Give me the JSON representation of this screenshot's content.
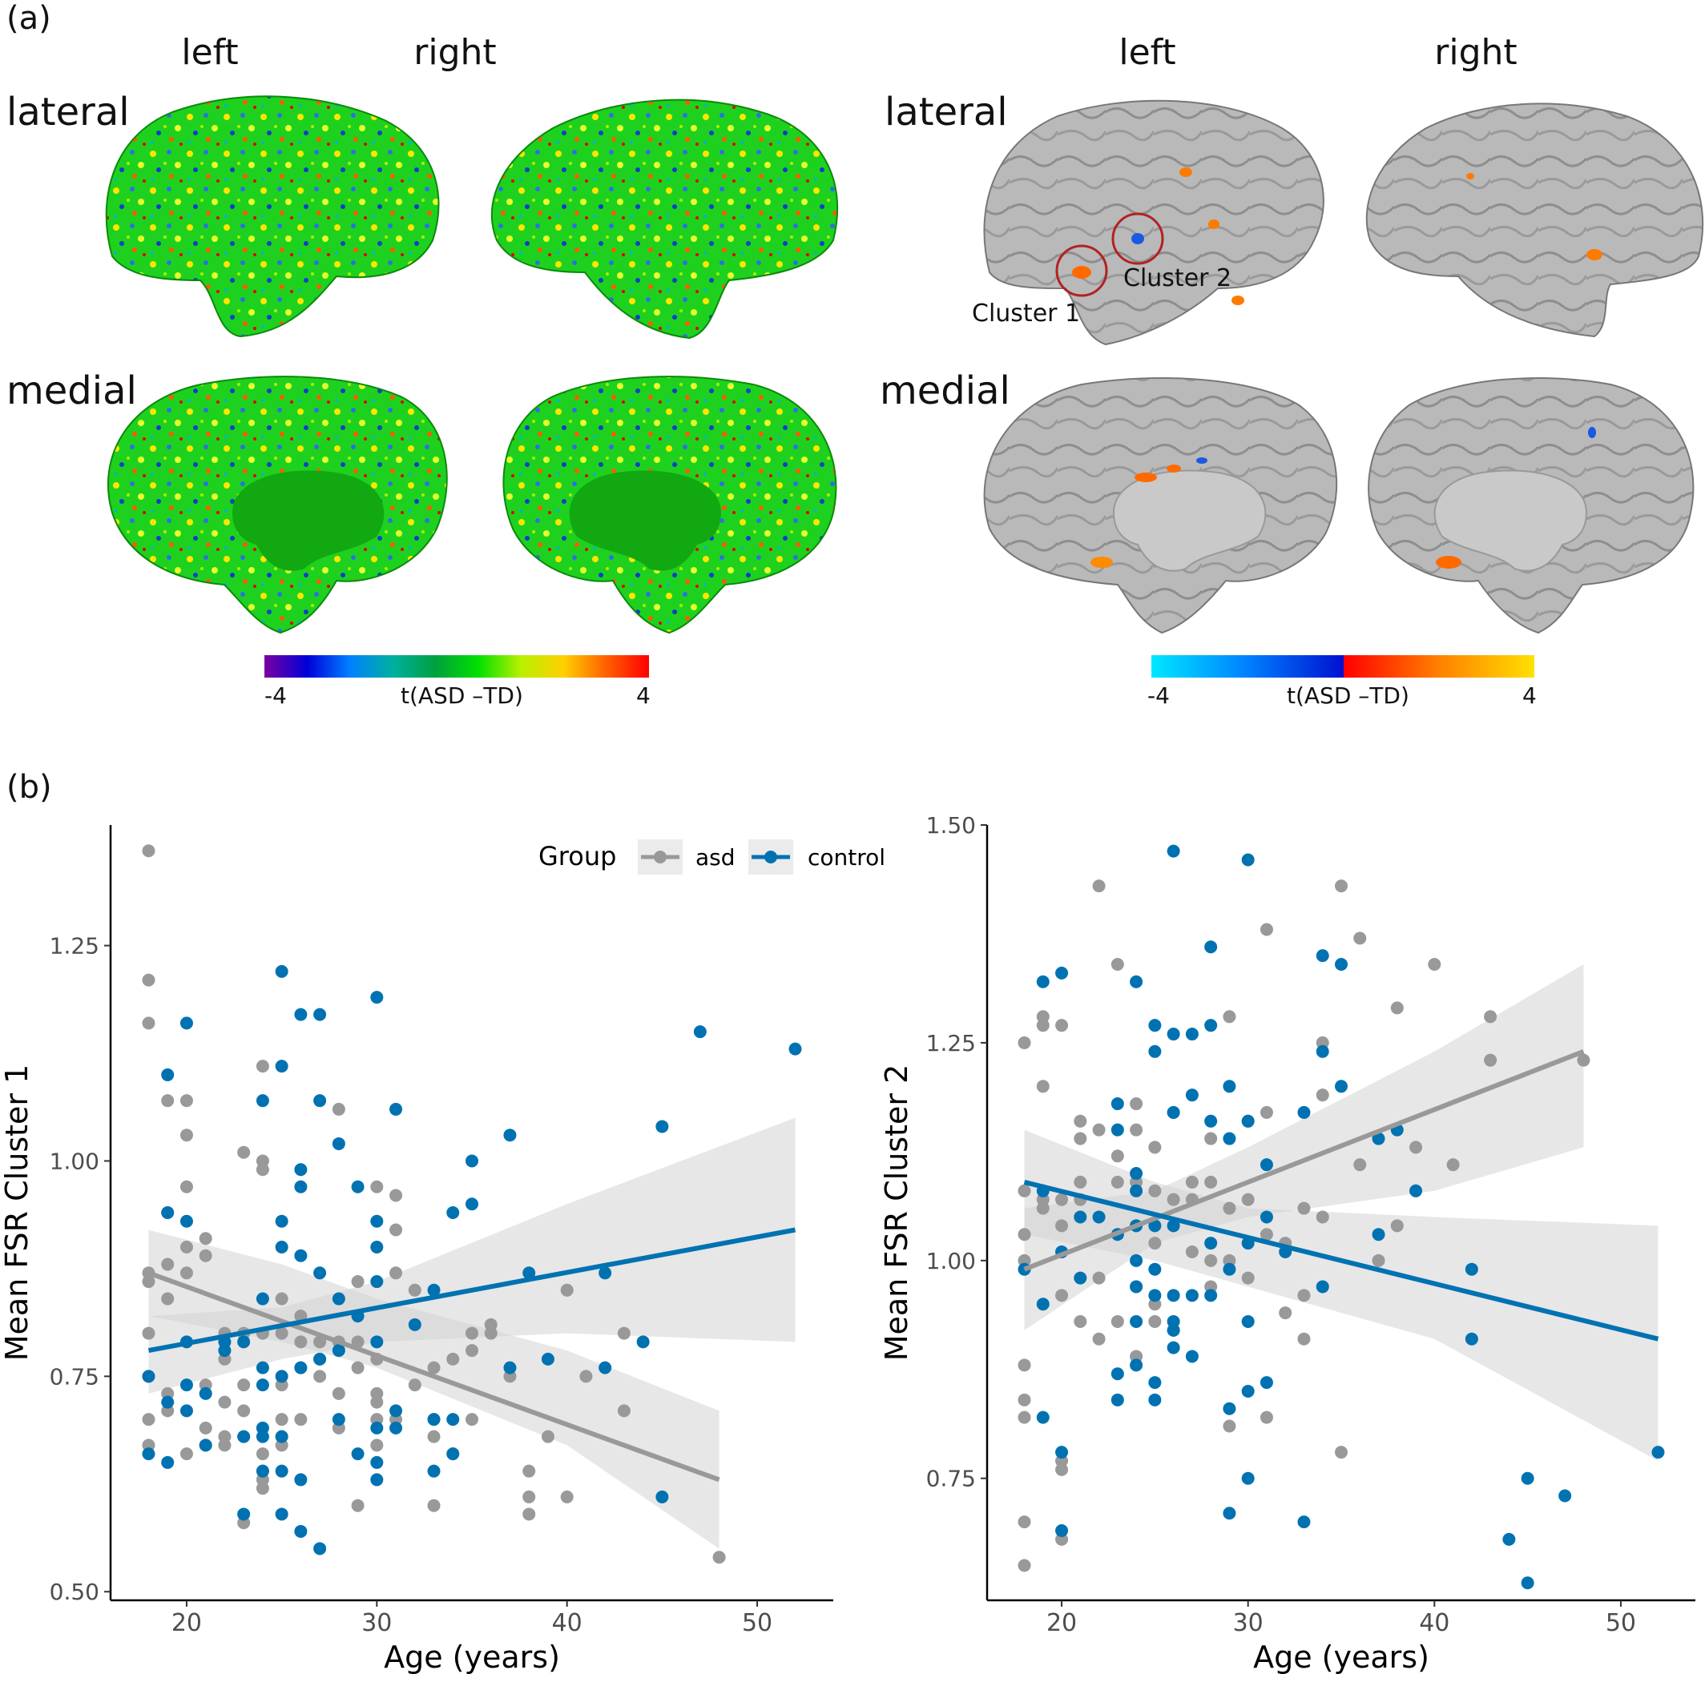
{
  "panel_a": {
    "label": "(a)",
    "left_block": {
      "hemi_left": "left",
      "hemi_right": "right",
      "row_lateral": "lateral",
      "row_medial": "medial",
      "colorbar": {
        "min": "-4",
        "title": "t(ASD  –TD)",
        "max": "4",
        "colors": [
          "#7a00a0",
          "#0000d8",
          "#0080ff",
          "#00b0a0",
          "#00a040",
          "#00e000",
          "#b8f000",
          "#ffd000",
          "#ff6000",
          "#ff0000"
        ]
      }
    },
    "right_block": {
      "hemi_left": "left",
      "hemi_right": "right",
      "row_lateral": "lateral",
      "row_medial": "medial",
      "cluster1": "Cluster 1",
      "cluster2": "Cluster 2",
      "colorbar": {
        "min": "-4",
        "title": "t(ASD  –TD)",
        "max": "4",
        "neg_colors": [
          "#00e8ff",
          "#0080ff",
          "#0010d0"
        ],
        "pos_colors": [
          "#ff0000",
          "#ff8000",
          "#ffe000"
        ]
      }
    }
  },
  "panel_b": {
    "label": "(b)",
    "legend": {
      "title": "Group",
      "asd": "asd",
      "control": "control"
    },
    "colors": {
      "asd": "#999999",
      "control": "#0072b2",
      "band": "#d3d3d3"
    }
  },
  "chart_data": [
    {
      "type": "scatter",
      "title": "",
      "xlabel": "Age (years)",
      "ylabel": "Mean FSR Cluster 1",
      "xlim": [
        16,
        54
      ],
      "ylim": [
        0.49,
        1.39
      ],
      "xticks": [
        20,
        30,
        40,
        50
      ],
      "yticks": [
        0.5,
        0.75,
        1.0,
        1.25
      ],
      "ytick_labels": [
        "0.50",
        "0.75",
        "1.00",
        "1.25"
      ],
      "grid": false,
      "series": [
        {
          "name": "asd",
          "x": [
            18,
            18,
            18,
            18,
            18,
            18,
            18,
            18,
            18,
            19,
            19,
            19,
            19,
            19,
            19,
            20,
            20,
            20,
            20,
            20,
            20,
            21,
            21,
            21,
            21,
            21,
            22,
            22,
            22,
            22,
            22,
            23,
            23,
            23,
            23,
            23,
            23,
            24,
            24,
            24,
            24,
            24,
            24,
            24,
            24,
            25,
            25,
            25,
            25,
            25,
            25,
            26,
            26,
            26,
            26,
            27,
            27,
            27,
            28,
            28,
            28,
            28,
            29,
            29,
            29,
            29,
            30,
            30,
            30,
            30,
            30,
            30,
            31,
            31,
            31,
            31,
            32,
            32,
            33,
            33,
            33,
            33,
            34,
            34,
            35,
            35,
            35,
            36,
            36,
            37,
            38,
            38,
            38,
            39,
            40,
            40,
            41,
            43,
            43,
            48
          ],
          "y": [
            1.36,
            1.21,
            1.16,
            0.87,
            0.86,
            0.8,
            0.75,
            0.7,
            0.67,
            1.07,
            0.94,
            0.88,
            0.84,
            0.73,
            0.71,
            1.07,
            1.03,
            0.97,
            0.9,
            0.87,
            0.66,
            0.91,
            0.89,
            0.74,
            0.69,
            0.67,
            0.8,
            0.77,
            0.72,
            0.68,
            0.67,
            1.01,
            0.8,
            0.74,
            0.71,
            0.68,
            0.58,
            1.11,
            1.0,
            0.99,
            0.8,
            0.66,
            0.64,
            0.62,
            0.63,
            0.84,
            0.8,
            0.74,
            0.7,
            0.68,
            0.67,
            0.82,
            0.79,
            0.76,
            0.7,
            0.79,
            0.77,
            0.75,
            1.06,
            0.79,
            0.73,
            0.69,
            0.86,
            0.79,
            0.76,
            0.6,
            0.97,
            0.77,
            0.73,
            0.72,
            0.7,
            0.67,
            0.96,
            0.92,
            0.87,
            0.7,
            0.85,
            0.74,
            0.76,
            0.7,
            0.6,
            0.68,
            0.77,
            0.66,
            0.8,
            0.78,
            0.7,
            0.81,
            0.8,
            0.75,
            0.64,
            0.61,
            0.59,
            0.68,
            0.85,
            0.61,
            0.75,
            0.8,
            0.71,
            0.54
          ],
          "fit": {
            "x": [
              18,
              48
            ],
            "y": [
              0.87,
              0.63
            ]
          },
          "ci_upper": [
            0.92,
            0.88,
            0.84,
            0.78,
            0.71
          ],
          "ci_lower": [
            0.82,
            0.79,
            0.76,
            0.67,
            0.55
          ],
          "ci_x": [
            18,
            25,
            30,
            40,
            48
          ]
        },
        {
          "name": "control",
          "x": [
            18,
            18,
            19,
            19,
            19,
            19,
            20,
            20,
            20,
            20,
            20,
            21,
            21,
            22,
            22,
            23,
            23,
            23,
            24,
            24,
            24,
            24,
            24,
            24,
            24,
            25,
            25,
            25,
            25,
            25,
            25,
            25,
            25,
            26,
            26,
            26,
            26,
            26,
            26,
            26,
            27,
            27,
            27,
            27,
            27,
            28,
            28,
            28,
            28,
            29,
            29,
            29,
            30,
            30,
            30,
            30,
            30,
            30,
            30,
            30,
            31,
            31,
            31,
            32,
            33,
            33,
            33,
            34,
            34,
            34,
            35,
            35,
            37,
            37,
            38,
            39,
            42,
            42,
            44,
            45,
            45,
            47,
            52
          ],
          "y": [
            0.75,
            0.66,
            1.1,
            0.94,
            0.72,
            0.65,
            1.16,
            0.93,
            0.79,
            0.74,
            0.71,
            0.73,
            0.67,
            0.79,
            0.78,
            0.79,
            0.68,
            0.59,
            1.07,
            0.84,
            0.76,
            0.74,
            0.69,
            0.68,
            0.64,
            1.22,
            1.11,
            0.93,
            0.9,
            0.75,
            0.68,
            0.64,
            0.59,
            1.17,
            0.99,
            0.97,
            0.89,
            0.76,
            0.63,
            0.57,
            1.17,
            1.07,
            0.87,
            0.77,
            0.55,
            1.02,
            0.84,
            0.78,
            0.7,
            0.97,
            0.82,
            0.66,
            1.19,
            0.93,
            0.9,
            0.86,
            0.79,
            0.69,
            0.65,
            0.63,
            1.06,
            0.71,
            0.69,
            0.81,
            0.85,
            0.7,
            0.64,
            0.94,
            0.7,
            0.66,
            1.0,
            0.95,
            1.03,
            0.76,
            0.87,
            0.77,
            0.87,
            0.76,
            0.79,
            1.04,
            0.61,
            1.15,
            1.13
          ],
          "fit": {
            "x": [
              18,
              52
            ],
            "y": [
              0.78,
              0.92
            ]
          },
          "ci_upper": [
            0.82,
            0.83,
            0.86,
            0.95,
            1.05
          ],
          "ci_lower": [
            0.73,
            0.77,
            0.79,
            0.8,
            0.79
          ],
          "ci_x": [
            18,
            25,
            30,
            40,
            52
          ]
        }
      ]
    },
    {
      "type": "scatter",
      "title": "",
      "xlabel": "Age (years)",
      "ylabel": "Mean FSR Cluster 2",
      "xlim": [
        16,
        54
      ],
      "ylim": [
        0.61,
        1.5
      ],
      "xticks": [
        20,
        30,
        40,
        50
      ],
      "yticks": [
        0.75,
        1.0,
        1.25,
        1.5
      ],
      "ytick_labels": [
        "0.75",
        "1.00",
        "1.25",
        "1.50"
      ],
      "grid": false,
      "series": [
        {
          "name": "asd",
          "x": [
            18,
            18,
            18,
            18,
            18,
            18,
            18,
            18,
            18,
            19,
            19,
            19,
            19,
            19,
            20,
            20,
            20,
            20,
            20,
            20,
            20,
            21,
            21,
            21,
            21,
            21,
            22,
            22,
            22,
            22,
            23,
            23,
            23,
            23,
            24,
            24,
            24,
            24,
            24,
            24,
            25,
            25,
            25,
            25,
            25,
            26,
            26,
            26,
            27,
            27,
            27,
            28,
            28,
            28,
            28,
            29,
            29,
            29,
            29,
            30,
            30,
            30,
            31,
            31,
            31,
            31,
            32,
            32,
            33,
            33,
            33,
            34,
            34,
            34,
            35,
            35,
            36,
            36,
            37,
            38,
            38,
            39,
            40,
            41,
            43,
            43,
            48
          ],
          "y": [
            1.25,
            1.08,
            1.03,
            1.0,
            0.88,
            0.84,
            0.82,
            0.7,
            0.65,
            1.28,
            1.27,
            1.2,
            1.07,
            1.06,
            1.27,
            1.07,
            1.04,
            0.96,
            0.77,
            0.76,
            0.68,
            1.16,
            1.14,
            1.09,
            1.07,
            0.93,
            1.43,
            1.15,
            0.98,
            0.91,
            1.34,
            1.12,
            1.09,
            0.93,
            1.18,
            1.15,
            1.09,
            1.04,
            0.97,
            0.89,
            1.13,
            1.08,
            1.02,
            0.95,
            0.93,
            1.17,
            1.07,
            0.92,
            1.09,
            1.07,
            1.01,
            1.14,
            1.09,
            1.0,
            0.97,
            1.28,
            1.06,
            1.0,
            0.81,
            1.16,
            1.07,
            0.98,
            1.38,
            1.17,
            1.03,
            0.82,
            1.02,
            0.94,
            1.06,
            0.96,
            0.91,
            1.25,
            1.19,
            1.05,
            1.43,
            0.78,
            1.37,
            1.11,
            1.0,
            1.29,
            1.04,
            1.13,
            1.34,
            1.11,
            1.28,
            1.23,
            1.23
          ],
          "fit": {
            "x": [
              18,
              48
            ],
            "y": [
              0.99,
              1.24
            ]
          },
          "ci_upper": [
            1.06,
            1.08,
            1.13,
            1.24,
            1.34
          ],
          "ci_lower": [
            0.92,
            1.02,
            1.05,
            1.08,
            1.13
          ],
          "ci_x": [
            18,
            25,
            30,
            40,
            48
          ]
        },
        {
          "name": "control",
          "x": [
            18,
            19,
            19,
            19,
            19,
            20,
            20,
            20,
            20,
            21,
            21,
            22,
            23,
            23,
            23,
            23,
            23,
            24,
            24,
            24,
            24,
            24,
            24,
            24,
            24,
            25,
            25,
            25,
            25,
            25,
            25,
            25,
            26,
            26,
            26,
            26,
            26,
            26,
            26,
            26,
            27,
            27,
            27,
            27,
            28,
            28,
            28,
            28,
            28,
            29,
            29,
            29,
            29,
            29,
            30,
            30,
            30,
            30,
            30,
            30,
            31,
            31,
            31,
            32,
            33,
            33,
            34,
            34,
            34,
            35,
            35,
            37,
            37,
            38,
            39,
            42,
            42,
            44,
            45,
            45,
            47,
            52
          ],
          "y": [
            0.99,
            1.32,
            1.08,
            0.95,
            0.82,
            1.33,
            1.01,
            0.78,
            0.69,
            1.05,
            0.98,
            1.05,
            1.18,
            1.15,
            1.03,
            0.87,
            0.84,
            1.32,
            1.1,
            1.08,
            1.04,
            1.0,
            0.97,
            0.93,
            0.88,
            1.27,
            1.24,
            1.04,
            0.99,
            0.96,
            0.86,
            0.84,
            1.47,
            1.26,
            1.17,
            1.04,
            0.96,
            0.93,
            0.92,
            0.9,
            1.26,
            1.19,
            0.96,
            0.89,
            1.36,
            1.27,
            1.16,
            1.02,
            0.96,
            1.2,
            1.14,
            0.99,
            0.83,
            0.71,
            1.46,
            1.16,
            1.02,
            0.93,
            0.85,
            0.75,
            1.11,
            1.05,
            0.86,
            1.01,
            1.17,
            0.7,
            1.35,
            1.24,
            0.97,
            1.34,
            1.2,
            1.14,
            1.03,
            1.15,
            1.08,
            0.99,
            0.91,
            0.68,
            0.75,
            0.63,
            0.73,
            0.78
          ],
          "fit": {
            "x": [
              18,
              52
            ],
            "y": [
              1.09,
              0.91
            ]
          },
          "ci_upper": [
            1.15,
            1.09,
            1.06,
            1.05,
            1.04
          ],
          "ci_lower": [
            1.03,
            1.0,
            0.97,
            0.91,
            0.77
          ],
          "ci_x": [
            18,
            25,
            30,
            40,
            52
          ]
        }
      ]
    }
  ]
}
